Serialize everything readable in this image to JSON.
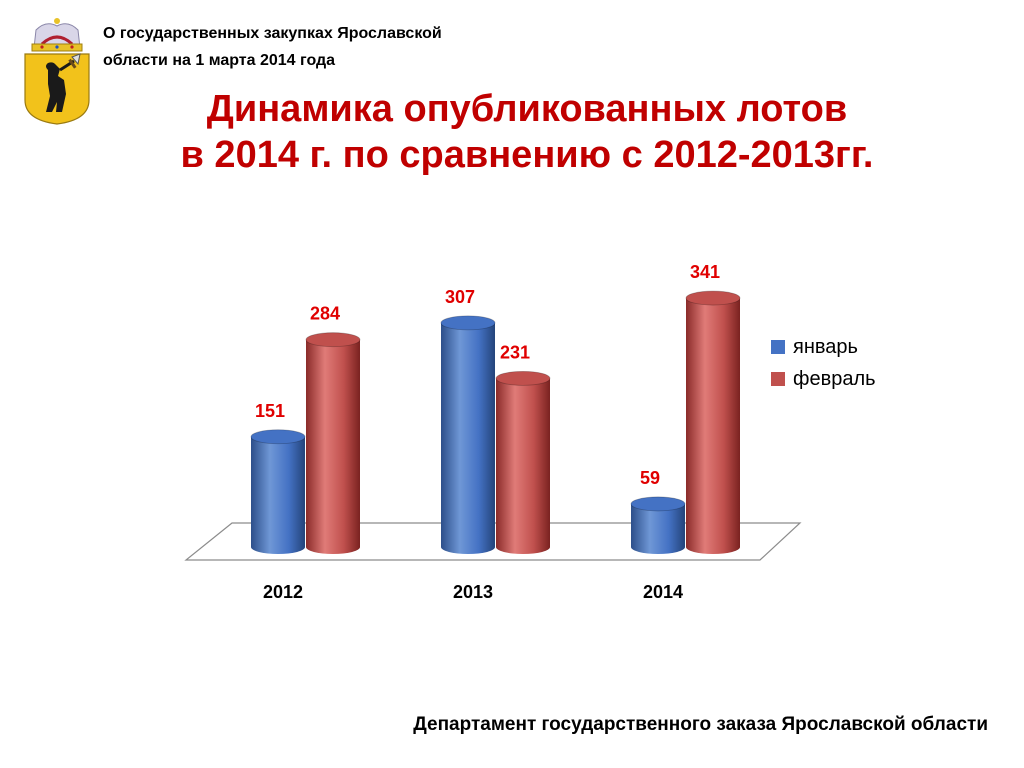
{
  "header": {
    "line1": "О государственных закупках Ярославской",
    "line2": "области на 1 марта 2014 года"
  },
  "title": {
    "line1": "Динамика опубликованных лотов",
    "line2": "в 2014 г. по сравнению с 2012-2013гг."
  },
  "footer": "Департамент государственного заказа Ярославской области",
  "colors": {
    "title": "#c00000",
    "january": "#4472c4",
    "february": "#c0504d",
    "label": "#e00000"
  },
  "chart_data": {
    "type": "bar",
    "categories": [
      "2012",
      "2013",
      "2014"
    ],
    "series": [
      {
        "name": "январь",
        "values": [
          151,
          307,
          59
        ]
      },
      {
        "name": "февраль",
        "values": [
          284,
          231,
          341
        ]
      }
    ],
    "ylim": [
      0,
      350
    ],
    "legend": "right",
    "grid": false,
    "title": "",
    "xlabel": "",
    "ylabel": ""
  }
}
